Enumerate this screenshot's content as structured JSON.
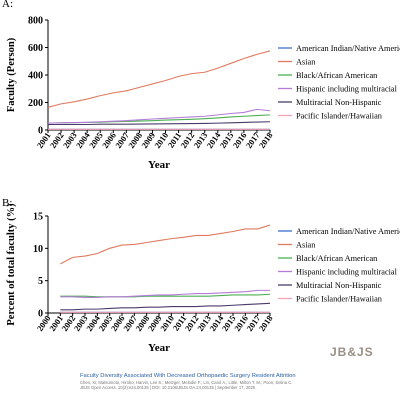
{
  "footer": {
    "logo": "JB&JS",
    "title": "Faculty Diversity Associated With Decreased Orthopaedic Surgery Resident Attrition",
    "authors": "Chen, Xi; Matsumoto, Hiroko; Harvin, Lee S.; Metzger, Melodie F.; Lin, Carol A.; Little, Milton T. M.; Poon, Selina C.",
    "journal": "JBJS Open Access. 10(3):e24.00135 | DOI: 10.2106/JBJS.OA.24.00135 | September 17, 2025"
  },
  "chart_data": [
    {
      "type": "line",
      "panel_label": "A:",
      "ylabel": "Faculty (Person)",
      "xlabel": "Year",
      "xlim": [
        2001,
        2018
      ],
      "ylim": [
        0,
        800
      ],
      "yticks": [
        0,
        200,
        400,
        600,
        800
      ],
      "x": [
        2001,
        2002,
        2003,
        2004,
        2005,
        2006,
        2007,
        2008,
        2009,
        2010,
        2011,
        2012,
        2013,
        2014,
        2015,
        2016,
        2017,
        2018
      ],
      "legend_position": "right",
      "series": [
        {
          "name": "American Indian/Native American",
          "color": "#3b6fd0",
          "values": [
            5,
            5,
            5,
            5,
            5,
            5,
            5,
            5,
            5,
            5,
            5,
            5,
            5,
            5,
            5,
            5,
            5,
            5
          ]
        },
        {
          "name": "Asian",
          "color": "#e07a5f",
          "values": [
            165,
            190,
            205,
            225,
            250,
            270,
            285,
            310,
            335,
            360,
            390,
            410,
            420,
            450,
            485,
            520,
            550,
            575
          ]
        },
        {
          "name": "Black/African American",
          "color": "#4caf50",
          "values": [
            50,
            52,
            53,
            55,
            57,
            60,
            62,
            65,
            68,
            72,
            75,
            78,
            82,
            88,
            95,
            100,
            105,
            110
          ]
        },
        {
          "name": "Hispanic including multiracial",
          "color": "#b57bd9",
          "values": [
            50,
            52,
            54,
            56,
            60,
            64,
            68,
            74,
            80,
            85,
            90,
            95,
            100,
            110,
            120,
            128,
            150,
            140
          ]
        },
        {
          "name": "Multiracial Non-Hispanic",
          "color": "#4a3b6b",
          "values": [
            40,
            40,
            40,
            40,
            42,
            42,
            42,
            43,
            44,
            45,
            46,
            47,
            48,
            50,
            52,
            55,
            58,
            60
          ]
        },
        {
          "name": "Pacific Islander/Hawaiian",
          "color": "#f4a3b5",
          "values": [
            5,
            5,
            5,
            5,
            5,
            5,
            5,
            5,
            5,
            5,
            5,
            5,
            5,
            5,
            5,
            5,
            5,
            5
          ]
        }
      ]
    },
    {
      "type": "line",
      "panel_label": "B:",
      "ylabel": "Percent of total faculty (%)",
      "xlabel": "Year",
      "xlim": [
        2000,
        2018
      ],
      "ylim": [
        0,
        15
      ],
      "yticks": [
        0,
        5,
        10,
        15
      ],
      "x": [
        2000,
        2001,
        2002,
        2003,
        2004,
        2005,
        2006,
        2007,
        2008,
        2009,
        2010,
        2011,
        2012,
        2013,
        2014,
        2015,
        2016,
        2017,
        2018
      ],
      "legend_position": "right",
      "series": [
        {
          "name": "American Indian/Native American",
          "color": "#3b6fd0",
          "values": [
            null,
            0.1,
            0.1,
            0.1,
            0.1,
            0.1,
            0.1,
            0.1,
            0.1,
            0.1,
            0.1,
            0.1,
            0.1,
            0.1,
            0.1,
            0.1,
            0.1,
            0.1,
            0.1
          ]
        },
        {
          "name": "Asian",
          "color": "#e07a5f",
          "values": [
            null,
            7.6,
            8.6,
            8.8,
            9.2,
            10.0,
            10.5,
            10.6,
            10.9,
            11.2,
            11.5,
            11.7,
            12.0,
            12.0,
            12.3,
            12.6,
            13.0,
            13.0,
            13.6
          ]
        },
        {
          "name": "Black/African American",
          "color": "#4caf50",
          "values": [
            null,
            2.6,
            2.6,
            2.6,
            2.5,
            2.5,
            2.5,
            2.5,
            2.6,
            2.6,
            2.6,
            2.6,
            2.6,
            2.6,
            2.7,
            2.8,
            2.8,
            2.8,
            2.9
          ]
        },
        {
          "name": "Hispanic including multiracial",
          "color": "#b57bd9",
          "values": [
            null,
            2.5,
            2.5,
            2.4,
            2.4,
            2.5,
            2.5,
            2.6,
            2.7,
            2.8,
            2.8,
            2.9,
            3.0,
            3.0,
            3.1,
            3.2,
            3.3,
            3.5,
            3.5
          ]
        },
        {
          "name": "Multiracial Non-Hispanic",
          "color": "#4a3b6b",
          "values": [
            null,
            0.5,
            0.5,
            0.6,
            0.6,
            0.7,
            0.8,
            0.8,
            0.9,
            0.9,
            1.0,
            1.0,
            1.0,
            1.1,
            1.1,
            1.2,
            1.3,
            1.4,
            1.5
          ]
        },
        {
          "name": "Pacific Islander/Hawaiian",
          "color": "#f4a3b5",
          "values": [
            null,
            0.1,
            0.1,
            0.1,
            0.1,
            0.1,
            0.1,
            0.1,
            0.1,
            0.1,
            0.1,
            0.1,
            0.1,
            0.1,
            0.1,
            0.1,
            0.1,
            0.1,
            0.1
          ]
        }
      ]
    }
  ]
}
